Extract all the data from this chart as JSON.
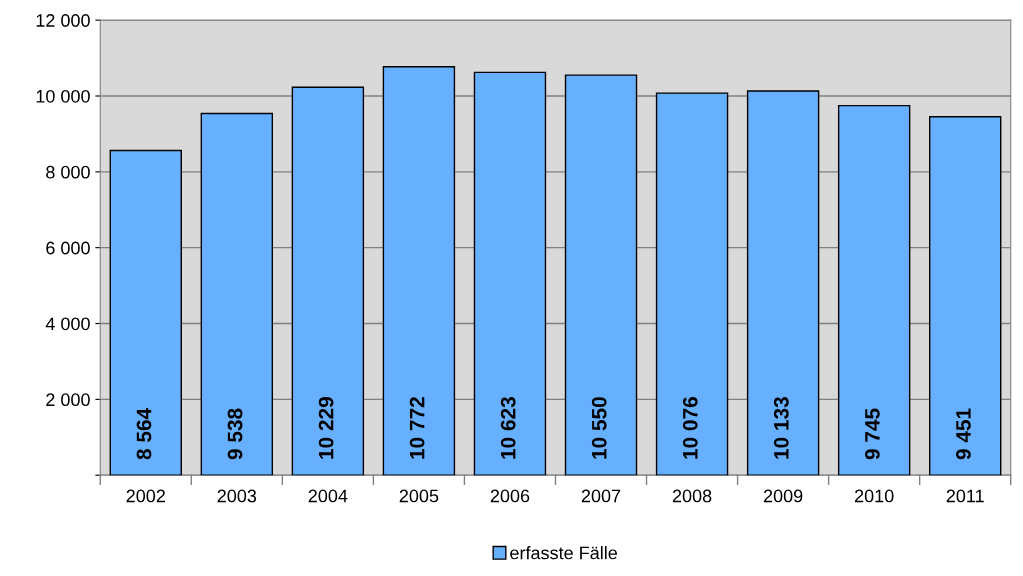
{
  "chart_data": {
    "type": "bar",
    "categories": [
      "2002",
      "2003",
      "2004",
      "2005",
      "2006",
      "2007",
      "2008",
      "2009",
      "2010",
      "2011"
    ],
    "series": [
      {
        "name": "erfasste Fälle",
        "color": "#66b0ff",
        "values": [
          8564,
          9538,
          10229,
          10772,
          10623,
          10550,
          10076,
          10133,
          9745,
          9451
        ],
        "value_labels": [
          "8 564",
          "9 538",
          "10 229",
          "10 772",
          "10 623",
          "10 550",
          "10 076",
          "10 133",
          "9 745",
          "9 451"
        ]
      }
    ],
    "ylim": [
      0,
      12000
    ],
    "yticks": [
      {
        "value": 0,
        "label": null
      },
      {
        "value": 2000,
        "label": "2 000"
      },
      {
        "value": 4000,
        "label": "4 000"
      },
      {
        "value": 6000,
        "label": "6 000"
      },
      {
        "value": 8000,
        "label": "8 000"
      },
      {
        "value": 10000,
        "label": "10 000"
      },
      {
        "value": 12000,
        "label": "12 000"
      }
    ],
    "grid": "y",
    "legend": "bottom"
  }
}
